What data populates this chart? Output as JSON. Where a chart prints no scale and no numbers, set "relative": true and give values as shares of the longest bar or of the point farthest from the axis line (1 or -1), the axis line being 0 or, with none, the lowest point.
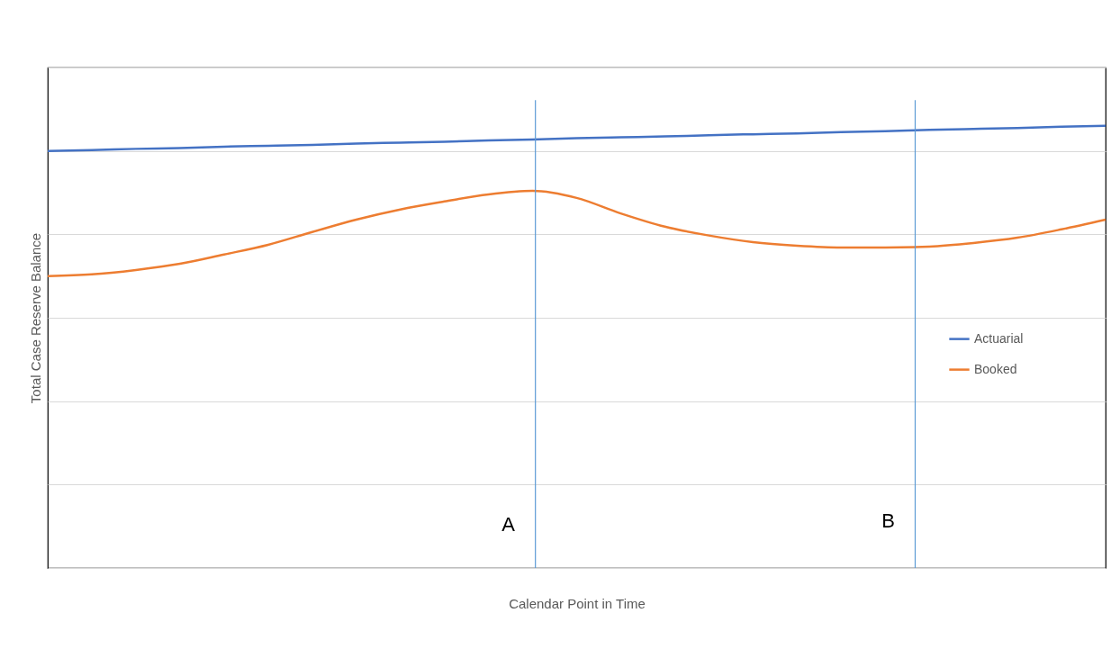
{
  "chart_data": {
    "type": "line",
    "relative": true,
    "xlabel": "Calendar Point in Time",
    "ylabel": "Total Case Reserve Balance",
    "categories": [
      null,
      null,
      null,
      null,
      null,
      null,
      null,
      null,
      null,
      null,
      null,
      null,
      null,
      null,
      null,
      null,
      null,
      null,
      null,
      null,
      null,
      null,
      null,
      null,
      null
    ],
    "series": [
      {
        "name": "Actuarial",
        "color": "#4472c4",
        "values": [
          0.943,
          0.945,
          0.948,
          0.95,
          0.953,
          0.955,
          0.957,
          0.96,
          0.962,
          0.964,
          0.967,
          0.969,
          0.972,
          0.974,
          0.976,
          0.979,
          0.981,
          0.983,
          0.986,
          0.988,
          0.991,
          0.993,
          0.995,
          0.998,
          1.0
        ]
      },
      {
        "name": "Booked",
        "color": "#ed7d31",
        "values": [
          0.66,
          0.664,
          0.674,
          0.688,
          0.709,
          0.731,
          0.76,
          0.788,
          0.811,
          0.829,
          0.845,
          0.853,
          0.837,
          0.802,
          0.772,
          0.752,
          0.737,
          0.729,
          0.725,
          0.725,
          0.727,
          0.735,
          0.747,
          0.766,
          0.788
        ]
      }
    ],
    "annotations": [
      "A",
      "B"
    ],
    "grid": "y",
    "legend": "right",
    "marker": "none",
    "line_style": "solid"
  }
}
